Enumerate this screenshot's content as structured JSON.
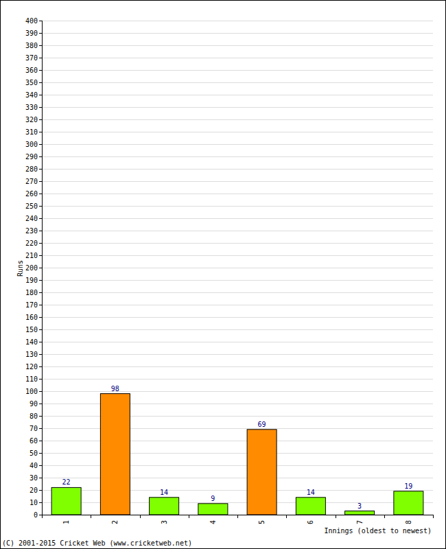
{
  "chart_data": {
    "type": "bar",
    "categories": [
      "1",
      "2",
      "3",
      "4",
      "5",
      "6",
      "7",
      "8"
    ],
    "values": [
      22,
      98,
      14,
      9,
      69,
      14,
      3,
      19
    ],
    "colors": [
      "#80ff00",
      "#ff8c00",
      "#80ff00",
      "#80ff00",
      "#ff8c00",
      "#80ff00",
      "#80ff00",
      "#80ff00"
    ],
    "x_label": "Innings (oldest to newest)",
    "y_label": "Runs",
    "annotations": [
      "(C) 2001-2015 Cricket Web (www.cricketweb.net)"
    ],
    "ylim": [
      0,
      400
    ],
    "yticks": [
      0,
      10,
      20,
      30,
      40,
      50,
      60,
      70,
      80,
      90,
      100,
      110,
      120,
      130,
      140,
      150,
      160,
      170,
      180,
      190,
      200,
      210,
      220,
      230,
      240,
      250,
      260,
      270,
      280,
      290,
      300,
      310,
      320,
      330,
      340,
      350,
      360,
      370,
      380,
      390,
      400
    ],
    "grid": true,
    "data_labels": true
  }
}
